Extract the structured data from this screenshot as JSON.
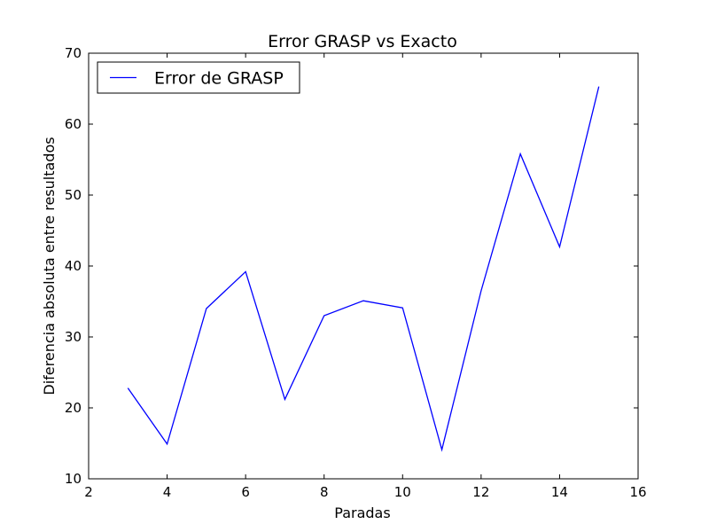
{
  "chart_data": {
    "type": "line",
    "title": "Error GRASP vs Exacto",
    "xlabel": "Paradas",
    "ylabel": "Diferencia absoluta entre resultados",
    "xlim": [
      2,
      16
    ],
    "ylim": [
      10,
      70
    ],
    "xticks": [
      2,
      4,
      6,
      8,
      10,
      12,
      14,
      16
    ],
    "yticks": [
      10,
      20,
      30,
      40,
      50,
      60,
      70
    ],
    "grid": false,
    "legend_position": "top-left",
    "series": [
      {
        "name": "Error de GRASP",
        "color": "#0000ff",
        "x": [
          3,
          4,
          5,
          6,
          7,
          8,
          9,
          10,
          11,
          12,
          13,
          14,
          15
        ],
        "y": [
          22.8,
          14.9,
          34.0,
          39.2,
          21.2,
          33.0,
          35.1,
          34.1,
          14.1,
          36.5,
          55.8,
          42.7,
          65.3
        ]
      }
    ]
  }
}
